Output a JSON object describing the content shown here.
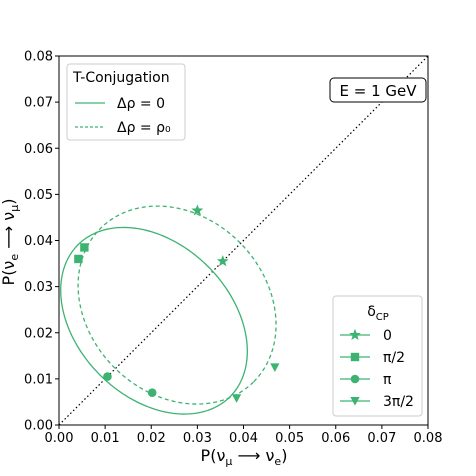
{
  "chart_data": {
    "type": "scatter",
    "xlabel": "P(ν_μ ⟶ ν_e)",
    "ylabel": "P(ν_e ⟶ ν_μ)",
    "xlim": [
      0,
      0.08
    ],
    "ylim": [
      0,
      0.08
    ],
    "x_ticks": [
      "0.00",
      "0.01",
      "0.02",
      "0.03",
      "0.04",
      "0.05",
      "0.06",
      "0.07",
      "0.08"
    ],
    "y_ticks": [
      "0.00",
      "0.01",
      "0.02",
      "0.03",
      "0.04",
      "0.05",
      "0.06",
      "0.07",
      "0.08"
    ],
    "grid": false,
    "color": "#3cb371",
    "annotation": "E = 1 GeV",
    "diagonal": {
      "style": "dotted",
      "from": [
        0,
        0
      ],
      "to": [
        0.08,
        0.08
      ]
    },
    "curves": [
      {
        "name": "Δρ = 0",
        "style": "solid",
        "center": [
          0.0206,
          0.0226
        ],
        "major_radius": 0.0233,
        "minor_radius": 0.0166,
        "rotation_deg": -45,
        "markers": [
          {
            "symbol": "star",
            "x": 0.0355,
            "y": 0.0355
          },
          {
            "symbol": "square",
            "x": 0.0055,
            "y": 0.0385
          },
          {
            "symbol": "circle",
            "x": 0.0105,
            "y": 0.0105
          },
          {
            "symbol": "triangle-down",
            "x": 0.0385,
            "y": 0.0058
          }
        ]
      },
      {
        "name": "Δρ = ρ₀",
        "style": "dashed",
        "center": [
          0.0256,
          0.026
        ],
        "major_radius": 0.0235,
        "minor_radius": 0.0192,
        "rotation_deg": -45,
        "markers": [
          {
            "symbol": "star",
            "x": 0.03,
            "y": 0.0465
          },
          {
            "symbol": "square",
            "x": 0.0042,
            "y": 0.036
          },
          {
            "symbol": "circle",
            "x": 0.0202,
            "y": 0.007
          },
          {
            "symbol": "triangle-down",
            "x": 0.0468,
            "y": 0.0125
          }
        ]
      }
    ],
    "legends": {
      "conjugation": {
        "title": "T-Conjugation",
        "entries": [
          {
            "label": "Δρ = 0",
            "style": "solid"
          },
          {
            "label": "Δρ = ρ₀",
            "style": "dashed"
          }
        ],
        "position": "top-left"
      },
      "delta_cp": {
        "title": "δ_CP",
        "entries": [
          {
            "label": "0",
            "symbol": "star"
          },
          {
            "label": "π/2",
            "symbol": "square"
          },
          {
            "label": "π",
            "symbol": "circle"
          },
          {
            "label": "3π/2",
            "symbol": "triangle-down"
          }
        ],
        "position": "bottom-right"
      }
    }
  }
}
